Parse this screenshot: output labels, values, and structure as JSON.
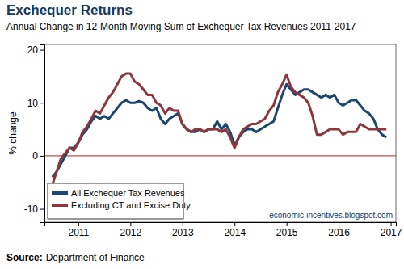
{
  "chart_data": {
    "type": "line",
    "title": "Exchequer Returns",
    "subtitle": "Annual Change in 12-Month Moving Sum of Exchequer Tax Revenues 2011-2017",
    "y_label": "% change",
    "source_label": "Source:",
    "source": "Department of Finance",
    "watermark": "economic-incentives.blogspot.com",
    "x": [
      2010.5,
      2010.583,
      2010.667,
      2010.75,
      2010.833,
      2010.917,
      2011,
      2011.083,
      2011.167,
      2011.25,
      2011.333,
      2011.417,
      2011.5,
      2011.583,
      2011.667,
      2011.75,
      2011.833,
      2011.917,
      2012,
      2012.083,
      2012.167,
      2012.25,
      2012.333,
      2012.417,
      2012.5,
      2012.583,
      2012.667,
      2012.75,
      2012.833,
      2012.917,
      2013,
      2013.083,
      2013.167,
      2013.25,
      2013.333,
      2013.417,
      2013.5,
      2013.583,
      2013.667,
      2013.75,
      2013.833,
      2013.917,
      2014,
      2014.083,
      2014.167,
      2014.25,
      2014.333,
      2014.417,
      2014.5,
      2014.583,
      2014.667,
      2014.75,
      2014.833,
      2014.917,
      2015,
      2015.083,
      2015.167,
      2015.25,
      2015.333,
      2015.417,
      2015.5,
      2015.583,
      2015.667,
      2015.75,
      2015.833,
      2015.917,
      2016,
      2016.083,
      2016.167,
      2016.25,
      2016.333,
      2016.417,
      2016.5,
      2016.583,
      2016.667,
      2016.75,
      2016.833,
      2016.917
    ],
    "series": [
      {
        "name": "All Exchequer Tax Revenues",
        "color": "#1a476f",
        "values": [
          -4,
          -3,
          -1.5,
          0,
          1.5,
          1.5,
          2.5,
          4,
          5,
          6.5,
          7.5,
          7,
          7.5,
          7,
          8,
          9,
          10,
          10.5,
          10,
          10,
          10.3,
          10,
          9,
          8.5,
          9,
          7,
          6,
          7,
          7.5,
          8,
          6,
          5,
          4.5,
          4.5,
          5,
          4.5,
          5,
          5,
          6.5,
          5,
          6,
          4.5,
          2,
          3.5,
          4.5,
          5,
          5,
          4.5,
          5,
          5.5,
          6,
          6.5,
          9,
          11.5,
          13.5,
          12.5,
          11.5,
          12,
          12.5,
          12.5,
          12,
          11.5,
          11,
          11.5,
          11,
          11.5,
          10,
          9.5,
          10,
          10.5,
          10.5,
          9.5,
          8.5,
          8,
          7,
          5,
          4,
          3.5
        ]
      },
      {
        "name": "Excluding CT and Excise Duty",
        "color": "#90353b",
        "values": [
          -5.5,
          -3,
          -0.5,
          0.5,
          1.5,
          1,
          2.5,
          4.5,
          5.5,
          7,
          8.5,
          8,
          9.5,
          11,
          12,
          13.5,
          15,
          15.5,
          15.5,
          14,
          13.5,
          12.5,
          11.5,
          11.5,
          10,
          9.5,
          8,
          9,
          8.5,
          8.5,
          6,
          5,
          4.5,
          5,
          5,
          4.5,
          5,
          5,
          5,
          4.5,
          5,
          3.5,
          1.5,
          3.5,
          5,
          5.5,
          6,
          6,
          6.5,
          7,
          8.5,
          9.5,
          12,
          13.5,
          15.3,
          13,
          12,
          11.5,
          11,
          10,
          7.5,
          4,
          4,
          4.5,
          5,
          5,
          5,
          4,
          4.5,
          4.5,
          4.5,
          6,
          5.5,
          5,
          5,
          5,
          5,
          5
        ]
      }
    ],
    "xlim": [
      2010.35,
      2017.1
    ],
    "xticks": [
      2011,
      2012,
      2013,
      2014,
      2015,
      2016,
      2017
    ],
    "ylim": [
      -12.5,
      21
    ],
    "yticks": [
      20,
      10,
      0,
      -10
    ],
    "grid": false,
    "legend": "lower left"
  }
}
